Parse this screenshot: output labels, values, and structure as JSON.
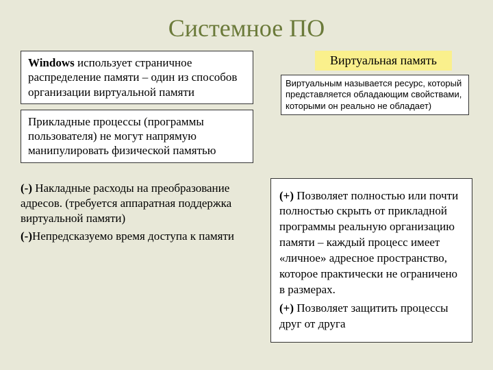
{
  "title": "Системное ПО",
  "windows_box": {
    "bold_lead": "Windows",
    "rest": " использует страничное распределение памяти – один из способов организации виртуальной памяти"
  },
  "vm_label": "Виртуальная память",
  "vm_def": "Виртуальным называется ресурс, который представляется обладающим свойствами, которыми он реально не обладает)",
  "proc_box": "Прикладные процессы (программы пользователя) не могут напрямую манипулировать физической памятью",
  "minus": {
    "m1_lead": "(-)",
    "m1_rest": " Накладные расходы на преобразование адресов. (требуется аппаратная поддержка виртуальной памяти)",
    "m2_lead": "(-)",
    "m2_rest": "Непредсказуемо время доступа к памяти"
  },
  "plus": {
    "p1_lead": "(+)",
    "p1_rest": " Позволяет полностью или почти полностью скрыть от прикладной программы реальную организацию памяти – каждый процесс имеет «личное» адресное пространство, которое практически не ограничено в размерах.",
    "p2_lead": "(+)",
    "p2_rest": " Позволяет защитить процессы друг от друга"
  },
  "colors": {
    "background": "#e8e8d8",
    "title_color": "#6b7a3a",
    "highlight": "#faf08c",
    "box_bg": "#ffffff",
    "border": "#333333"
  }
}
